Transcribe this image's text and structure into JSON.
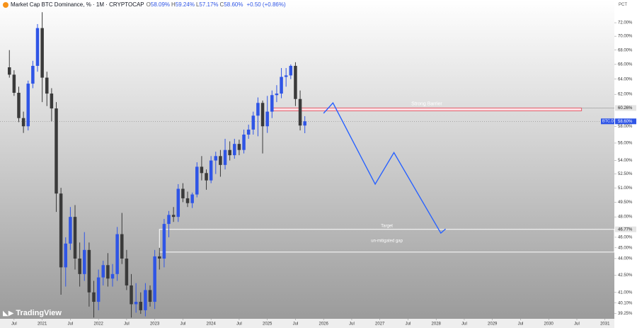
{
  "header": {
    "title": "Market Cap BTC Dominance, % · 1M · CRYPTOCAP",
    "ohlc": [
      {
        "key": "O",
        "value": "58.09%"
      },
      {
        "key": "H",
        "value": "59.24%"
      },
      {
        "key": "L",
        "value": "57.17%"
      },
      {
        "key": "C",
        "value": "58.60%"
      }
    ],
    "change": "+0.50 (+0.86%)",
    "scale_mode": "PCT",
    "watermark": "TradingView"
  },
  "chart_data": {
    "type": "candlestick",
    "log_scale": true,
    "grid": false,
    "up_color": "#2f55e6",
    "down_color": "#3a3a3a",
    "x": [
      "2020-06",
      "2020-07",
      "2020-08",
      "2020-09",
      "2020-10",
      "2020-11",
      "2020-12",
      "2021-01",
      "2021-02",
      "2021-03",
      "2021-04",
      "2021-05",
      "2021-06",
      "2021-07",
      "2021-08",
      "2021-09",
      "2021-10",
      "2021-11",
      "2021-12",
      "2022-01",
      "2022-02",
      "2022-03",
      "2022-04",
      "2022-05",
      "2022-06",
      "2022-07",
      "2022-08",
      "2022-09",
      "2022-10",
      "2022-11",
      "2022-12",
      "2023-01",
      "2023-02",
      "2023-03",
      "2023-04",
      "2023-05",
      "2023-06",
      "2023-07",
      "2023-08",
      "2023-09",
      "2023-10",
      "2023-11",
      "2023-12",
      "2024-01",
      "2024-02",
      "2024-03",
      "2024-04",
      "2024-05",
      "2024-06",
      "2024-07",
      "2024-08",
      "2024-09",
      "2024-10",
      "2024-11",
      "2024-12",
      "2025-01",
      "2025-02",
      "2025-03",
      "2025-04",
      "2025-05",
      "2025-06",
      "2025-07",
      "2025-08",
      "2025-09"
    ],
    "open": [
      65.6,
      64.6,
      62.2,
      59.0,
      58.0,
      63.4,
      65.8,
      71.2,
      64.2,
      62.1,
      60.2,
      50.4,
      43.2,
      45.4,
      48.0,
      44.0,
      42.6,
      44.8,
      41.0,
      40.2,
      42.3,
      43.4,
      42.2,
      42.6,
      46.3,
      44.0,
      41.6,
      40.0,
      40.2,
      39.5,
      41.2,
      40.2,
      44.2,
      44.0,
      47.3,
      48.2,
      48.0,
      50.9,
      49.9,
      49.4,
      50.3,
      53.3,
      52.6,
      51.8,
      54.0,
      54.5,
      53.5,
      55.2,
      54.6,
      55.9,
      55.2,
      57.0,
      57.6,
      59.3,
      60.9,
      58.0,
      59.8,
      61.9,
      62.1,
      64.3,
      64.5,
      65.8,
      61.4,
      58.09
    ],
    "high": [
      68.0,
      65.2,
      63.0,
      59.8,
      63.8,
      66.5,
      71.8,
      73.6,
      65.0,
      62.8,
      61.0,
      51.0,
      46.0,
      49.0,
      49.2,
      45.5,
      46.5,
      45.5,
      42.0,
      43.0,
      43.8,
      44.5,
      43.5,
      47.0,
      48.4,
      44.8,
      42.6,
      41.8,
      41.0,
      41.8,
      41.6,
      44.8,
      45.0,
      47.8,
      48.6,
      49.0,
      51.4,
      51.5,
      50.6,
      50.5,
      53.8,
      54.5,
      53.0,
      54.5,
      55.0,
      55.2,
      56.5,
      56.2,
      56.5,
      56.4,
      57.6,
      58.2,
      59.8,
      61.6,
      61.2,
      61.8,
      62.5,
      63.2,
      65.5,
      65.5,
      66.0,
      66.3,
      62.5,
      59.24
    ],
    "low": [
      64.2,
      61.8,
      58.5,
      57.2,
      57.5,
      62.8,
      65.0,
      61.0,
      60.5,
      58.6,
      48.5,
      40.8,
      41.5,
      44.8,
      43.0,
      41.5,
      42.0,
      39.8,
      38.9,
      39.5,
      41.6,
      41.5,
      41.5,
      42.0,
      43.5,
      41.2,
      38.9,
      39.3,
      39.2,
      39.0,
      39.8,
      39.6,
      43.0,
      43.2,
      46.0,
      47.5,
      47.5,
      49.5,
      49.0,
      48.9,
      50.0,
      51.8,
      50.8,
      51.5,
      52.5,
      52.2,
      53.0,
      54.0,
      54.2,
      54.6,
      54.8,
      56.5,
      57.0,
      56.8,
      54.8,
      57.2,
      59.0,
      61.0,
      61.5,
      63.0,
      64.0,
      60.5,
      57.5,
      57.17
    ],
    "close": [
      64.6,
      62.2,
      59.0,
      58.0,
      63.4,
      65.8,
      71.2,
      64.2,
      62.1,
      60.2,
      50.4,
      43.2,
      45.4,
      48.0,
      44.0,
      42.6,
      44.8,
      41.0,
      40.2,
      42.3,
      43.4,
      42.2,
      42.6,
      46.3,
      44.0,
      41.6,
      40.0,
      40.2,
      39.5,
      41.2,
      40.2,
      44.2,
      44.0,
      47.3,
      48.2,
      48.0,
      50.9,
      49.9,
      49.4,
      50.3,
      53.3,
      52.6,
      51.8,
      54.0,
      54.5,
      53.5,
      55.2,
      54.6,
      55.9,
      55.2,
      57.0,
      57.6,
      59.3,
      60.9,
      58.0,
      59.8,
      61.9,
      62.1,
      64.3,
      64.5,
      65.8,
      61.4,
      58.09,
      58.6
    ],
    "xlim": [
      "2020-04",
      "2031-03"
    ],
    "xticks": [
      {
        "value": "2020-07",
        "label": "Jul"
      },
      {
        "value": "2021-01",
        "label": "2021"
      },
      {
        "value": "2021-07",
        "label": "Jul"
      },
      {
        "value": "2022-01",
        "label": "2022"
      },
      {
        "value": "2022-07",
        "label": "Jul"
      },
      {
        "value": "2023-01",
        "label": "2023"
      },
      {
        "value": "2023-07",
        "label": "Jul"
      },
      {
        "value": "2024-01",
        "label": "2024"
      },
      {
        "value": "2024-07",
        "label": "Jul"
      },
      {
        "value": "2025-01",
        "label": "2025"
      },
      {
        "value": "2025-07",
        "label": "Jul"
      },
      {
        "value": "2026-01",
        "label": "2026"
      },
      {
        "value": "2026-07",
        "label": "Jul"
      },
      {
        "value": "2027-01",
        "label": "2027"
      },
      {
        "value": "2027-07",
        "label": "Jul"
      },
      {
        "value": "2028-01",
        "label": "2028"
      },
      {
        "value": "2028-07",
        "label": "Jul"
      },
      {
        "value": "2029-01",
        "label": "2029"
      },
      {
        "value": "2029-07",
        "label": "Jul"
      },
      {
        "value": "2030-01",
        "label": "2030"
      },
      {
        "value": "2030-07",
        "label": "Jul"
      },
      {
        "value": "2031-01",
        "label": "2031"
      }
    ],
    "ylim": [
      38.8,
      75.5
    ],
    "yticks": [
      {
        "value": 72,
        "label": "72.00%"
      },
      {
        "value": 70,
        "label": "70.00%"
      },
      {
        "value": 68,
        "label": "68.00%"
      },
      {
        "value": 66,
        "label": "66.00%"
      },
      {
        "value": 64,
        "label": "64.00%"
      },
      {
        "value": 62,
        "label": "62.00%"
      },
      {
        "value": 58,
        "label": "58.00%"
      },
      {
        "value": 56,
        "label": "56.00%"
      },
      {
        "value": 54,
        "label": "54.00%"
      },
      {
        "value": 52.5,
        "label": "52.50%"
      },
      {
        "value": 51,
        "label": "51.00%"
      },
      {
        "value": 49.5,
        "label": "49.50%"
      },
      {
        "value": 48,
        "label": "48.00%"
      },
      {
        "value": 46,
        "label": "46.00%"
      },
      {
        "value": 45,
        "label": "45.00%"
      },
      {
        "value": 44,
        "label": "44.00%"
      },
      {
        "value": 42.5,
        "label": "42.50%"
      },
      {
        "value": 41,
        "label": "41.00%"
      },
      {
        "value": 40.1,
        "label": "40.10%"
      },
      {
        "value": 39.25,
        "label": "39.25%"
      }
    ],
    "last_price": {
      "value": 58.6,
      "label": "58.60%",
      "tag": "BTC.D",
      "color": "#2f55e6"
    },
    "zones": [
      {
        "labels": [
          "Strong Barrier"
        ],
        "ylim": [
          59.9,
          60.26
        ],
        "xlim": [
          "2025-02",
          "2030-08"
        ],
        "axis_label": "60.26%",
        "fill": "#ffe0e4",
        "stroke": "#e0606e"
      },
      {
        "labels": [
          "Target",
          "un-mitigated gap"
        ],
        "ylim": [
          44.6,
          46.77
        ],
        "xlim": [
          "2023-02",
          "2031-03"
        ],
        "axis_label": "46.77%",
        "fill": "none",
        "stroke": "#ffffff"
      }
    ],
    "projection": {
      "color": "#2962ff",
      "x": [
        "2026-01",
        "2026-03",
        "2026-12",
        "2027-04",
        "2028-02",
        "2028-03"
      ],
      "values": [
        59.6,
        60.9,
        51.4,
        54.9,
        46.4,
        46.8
      ]
    }
  }
}
